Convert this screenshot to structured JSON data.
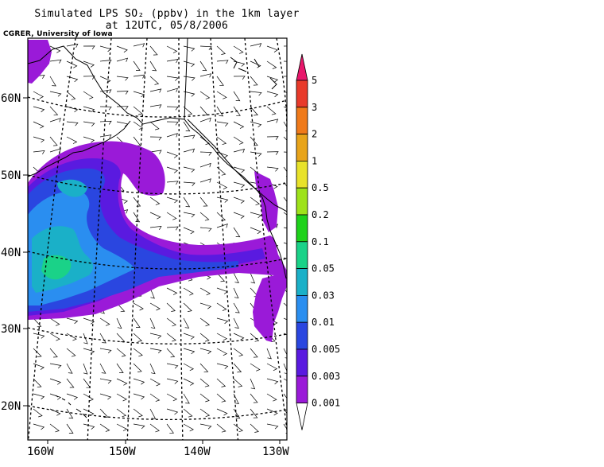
{
  "title_line1": "Simulated LPS SO₂ (ppbv) in the 1km layer",
  "title_line2": "at 12UTC, 05/8/2006",
  "credit": "CGRER, University of Iowa",
  "lat_labels": [
    "60N",
    "50N",
    "40N",
    "30N",
    "20N"
  ],
  "lon_labels": [
    "160W",
    "150W",
    "140W",
    "130W"
  ],
  "colorbar": {
    "levels": [
      "5",
      "3",
      "2",
      "1",
      "0.5",
      "0.2",
      "0.1",
      "0.05",
      "0.03",
      "0.01",
      "0.005",
      "0.003",
      "0.001"
    ],
    "colors": [
      "#e8176b",
      "#e83a2a",
      "#f07a1a",
      "#e8a41a",
      "#e8e22a",
      "#9ee21a",
      "#1ed21a",
      "#1ad288",
      "#1ab0c8",
      "#2a8ef0",
      "#2a46e0",
      "#5a1ae0",
      "#9a1ad8"
    ]
  },
  "colors": {
    "plume_faint": "#9a1ad8",
    "plume_light": "#5a1ae0",
    "plume_mid": "#2a46e0",
    "plume_blue": "#2a8ef0",
    "plume_cyan": "#1ab0c8",
    "plume_green": "#1ad288"
  }
}
